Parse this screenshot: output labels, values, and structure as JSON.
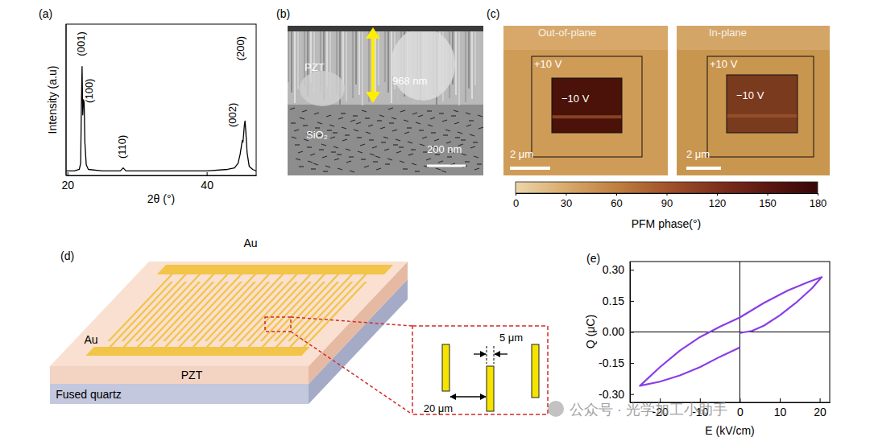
{
  "chart_data": [
    {
      "type": "line",
      "title": "(a)",
      "x_label": "2θ (°)",
      "y_label": "Intensity (a.u)",
      "x": [
        19.8,
        21.0,
        21.7,
        21.9,
        22.0,
        22.1,
        22.2,
        22.3,
        22.4,
        22.5,
        22.7,
        23.0,
        25.0,
        27.6,
        28.0,
        28.4,
        30.0,
        35.0,
        40.0,
        43.0,
        44.0,
        44.5,
        44.8,
        45.0,
        45.1,
        45.2,
        45.3,
        45.4,
        45.5,
        45.6,
        45.8,
        46.1,
        46.6,
        47.1
      ],
      "series": [
        {
          "color": "#000000",
          "values": [
            3,
            3,
            4,
            8,
            45,
            72,
            40,
            50,
            48,
            22,
            7,
            4,
            3,
            3,
            5,
            3,
            3,
            3,
            3,
            4,
            5,
            8,
            14,
            20,
            23,
            22,
            27,
            33,
            36,
            30,
            15,
            6,
            4,
            3
          ]
        }
      ],
      "xlim": [
        19.8,
        47.1
      ],
      "xticks": [
        20,
        40
      ],
      "ylim": [
        0,
        100
      ],
      "yticks": [],
      "tick_labels": "x",
      "annotations": [
        {
          "text": "(001)",
          "x": 22.1,
          "y": 87
        },
        {
          "text": "(100)",
          "x": 23.2,
          "y": 56
        },
        {
          "text": "(110)",
          "x": 28.0,
          "y": 19
        },
        {
          "text": "(002)",
          "x": 43.8,
          "y": 40
        },
        {
          "text": "(200)",
          "x": 45.0,
          "y": 84
        }
      ]
    },
    {
      "type": "line",
      "title": "(e)",
      "x_label": "E (kV/cm)",
      "y_label": "Q (μC)",
      "x": [
        0,
        3,
        6,
        10,
        14,
        18,
        20.5,
        17,
        12,
        6,
        0,
        -5,
        -10,
        -15,
        -20,
        -25,
        -20,
        -15,
        -10,
        -5,
        0
      ],
      "series": [
        {
          "color": "#8a3ee6",
          "values": [
            -0.005,
            0.005,
            0.03,
            0.08,
            0.14,
            0.21,
            0.265,
            0.24,
            0.2,
            0.14,
            0.07,
            0.025,
            -0.025,
            -0.09,
            -0.17,
            -0.26,
            -0.24,
            -0.21,
            -0.17,
            -0.12,
            -0.075
          ]
        }
      ],
      "xlim": [
        -27.5,
        22.5
      ],
      "xticks": [
        -20,
        -10,
        0,
        10,
        20
      ],
      "ylim": [
        -0.34,
        0.34
      ],
      "yticks": [
        {
          "value": 0.3,
          "label": "0.30"
        },
        0.15,
        {
          "value": 0,
          "label": "0.00"
        },
        -0.15,
        {
          "value": -0.3,
          "label": "-0.30"
        }
      ]
    }
  ],
  "panels": {
    "b": {
      "label": "(b)",
      "film": "PZT",
      "thickness": "968 nm",
      "substrate": "SiO₂",
      "scale_bar": "200 nm"
    },
    "c": {
      "label": "(c)",
      "images": [
        {
          "title": "Out-of-plane",
          "outer": "+10 V",
          "inner": "−10 V",
          "scale_bar": "2 μm"
        },
        {
          "title": "In-plane",
          "outer": "+10 V",
          "inner": "−10 V",
          "scale_bar": "2 μm"
        }
      ],
      "colorbar": {
        "range": [
          0,
          180
        ],
        "ticks": [
          0,
          30,
          60,
          90,
          120,
          150,
          180
        ],
        "label": "PFM phase(°)"
      }
    },
    "d": {
      "label": "(d)",
      "electrode_top": "Au",
      "electrode_bottom": "Au",
      "film": "PZT",
      "substrate": "Fused quartz",
      "gap": "5 μm",
      "pitch": "20 μm"
    }
  },
  "watermark": "公众号 · 光学加工小助手"
}
